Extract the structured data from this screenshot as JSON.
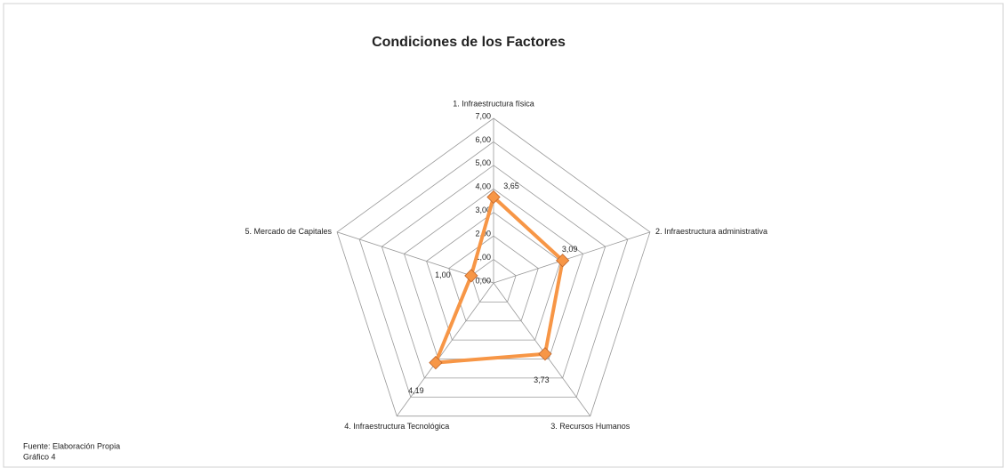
{
  "chart_data": {
    "type": "radar",
    "title": "Condiciones de los Factores",
    "categories": [
      "1. Infraestructura física",
      "2. Infraestructura administrativa",
      "3. Recursos Humanos",
      "4. Infraestructura Tecnológica",
      "5. Mercado de Capitales"
    ],
    "values": [
      3.65,
      3.09,
      3.73,
      4.19,
      1.0
    ],
    "value_labels": [
      "3,65",
      "3,09",
      "3,73",
      "4,19",
      "1,00"
    ],
    "color": "#f79646",
    "ylim": [
      0,
      7
    ],
    "yticks": [
      {
        "value": 0,
        "label": "0,00"
      },
      {
        "value": 1,
        "label": "1,00"
      },
      {
        "value": 2,
        "label": "2,00"
      },
      {
        "value": 3,
        "label": "3,00"
      },
      {
        "value": 4,
        "label": "4,00"
      },
      {
        "value": 5,
        "label": "5,00"
      },
      {
        "value": 6,
        "label": "6,00"
      },
      {
        "value": 7,
        "label": "7,00"
      }
    ],
    "grid": true
  },
  "footer": {
    "source": "Fuente: Elaboración Propia",
    "figure": "Gráfico 4"
  }
}
